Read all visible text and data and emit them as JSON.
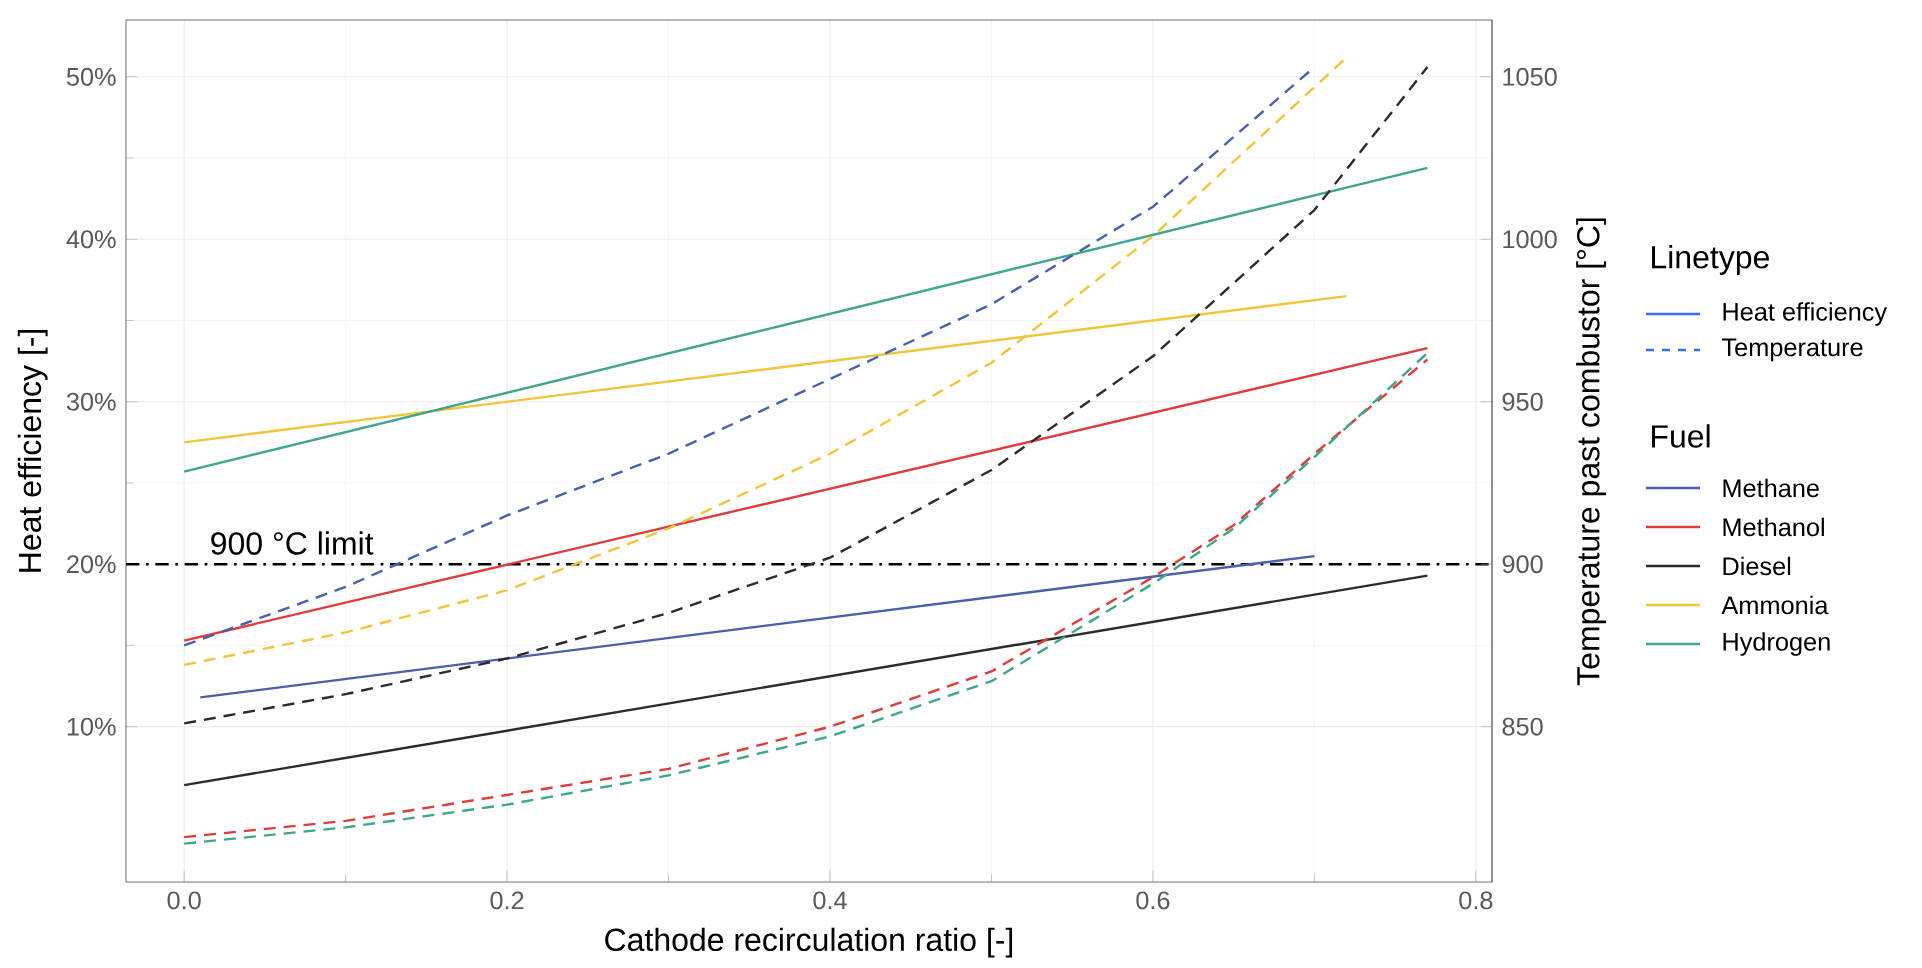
{
  "chart_data": {
    "type": "line",
    "xlabel": "Cathode recirculation ratio [-]",
    "ylabel": "Heat efficiency [-]",
    "y2label": "Temperature past combustor [°C]",
    "legend_title": "Fuel",
    "legend": "right",
    "grid": true,
    "xlim": [
      -0.036,
      0.81
    ],
    "xticks": [
      {
        "value": 0,
        "label": "0.0"
      },
      0.2,
      0.4,
      0.6,
      0.8
    ],
    "ylim": [
      0.44,
      53.5
    ],
    "yticks": [
      {
        "value": 10,
        "label": "10%"
      },
      {
        "value": 20,
        "label": "20%"
      },
      {
        "value": 30,
        "label": "30%"
      },
      {
        "value": 40,
        "label": "40%"
      },
      {
        "value": 50,
        "label": "50%"
      }
    ],
    "y2lim": [
      802.2,
      1067.5
    ],
    "y2ticks": [
      850,
      900,
      950,
      1000,
      1050
    ],
    "annotations": [
      "Linetype",
      "Heat efficiency",
      "Temperature"
    ],
    "ref_lines": [
      {
        "axis": "y",
        "value": 20,
        "label": "900 °C limit",
        "color": "#000000",
        "line_style": "dashdot"
      }
    ],
    "series": [
      {
        "name": "Methane",
        "color": "#4a5fac",
        "line_style": "solid",
        "x": [
          0.01,
          0.7
        ],
        "values": [
          11.8,
          20.5
        ]
      },
      {
        "name": "Methanol",
        "color": "#e03b3b",
        "line_style": "solid",
        "x": [
          0,
          0.77
        ],
        "values": [
          15.3,
          33.3
        ]
      },
      {
        "name": "Diesel",
        "color": "#2b2b2b",
        "line_style": "solid",
        "x": [
          0,
          0.77
        ],
        "values": [
          6.4,
          19.3
        ]
      },
      {
        "name": "Ammonia",
        "color": "#f0c53a",
        "line_style": "solid",
        "x": [
          0,
          0.72
        ],
        "values": [
          27.5,
          36.5
        ]
      },
      {
        "name": "Hydrogen",
        "color": "#3ea68a",
        "line_style": "solid",
        "x": [
          0,
          0.77
        ],
        "values": [
          25.7,
          44.4
        ]
      },
      {
        "color": "#4a5fac",
        "line_style": "dashed",
        "axis": "y2",
        "x": [
          0,
          0.1,
          0.2,
          0.3,
          0.4,
          0.5,
          0.6,
          0.7
        ],
        "values": [
          875,
          893,
          915,
          934,
          957,
          980,
          1010,
          1053
        ]
      },
      {
        "color": "#e03b3b",
        "line_style": "dashed",
        "axis": "y2",
        "x": [
          0,
          0.1,
          0.2,
          0.3,
          0.4,
          0.5,
          0.6,
          0.65,
          0.7,
          0.77
        ],
        "values": [
          816,
          821,
          829,
          837,
          850,
          867,
          896,
          912,
          934,
          963
        ]
      },
      {
        "color": "#2b2b2b",
        "line_style": "dashed",
        "axis": "y2",
        "x": [
          0,
          0.1,
          0.2,
          0.3,
          0.4,
          0.5,
          0.6,
          0.7,
          0.77
        ],
        "values": [
          851,
          860,
          871,
          885,
          902,
          929,
          964,
          1009,
          1053
        ]
      },
      {
        "color": "#f0c53a",
        "line_style": "dashed",
        "axis": "y2",
        "x": [
          0,
          0.1,
          0.2,
          0.3,
          0.4,
          0.5,
          0.6,
          0.72
        ],
        "values": [
          869,
          879,
          892,
          911,
          934,
          962,
          1001,
          1056
        ]
      },
      {
        "color": "#3ea68a",
        "line_style": "dashed",
        "axis": "y2",
        "x": [
          0,
          0.1,
          0.2,
          0.3,
          0.4,
          0.5,
          0.6,
          0.65,
          0.7,
          0.77
        ],
        "values": [
          814,
          819,
          826,
          835,
          847,
          864,
          894,
          911,
          933,
          965
        ]
      }
    ]
  }
}
